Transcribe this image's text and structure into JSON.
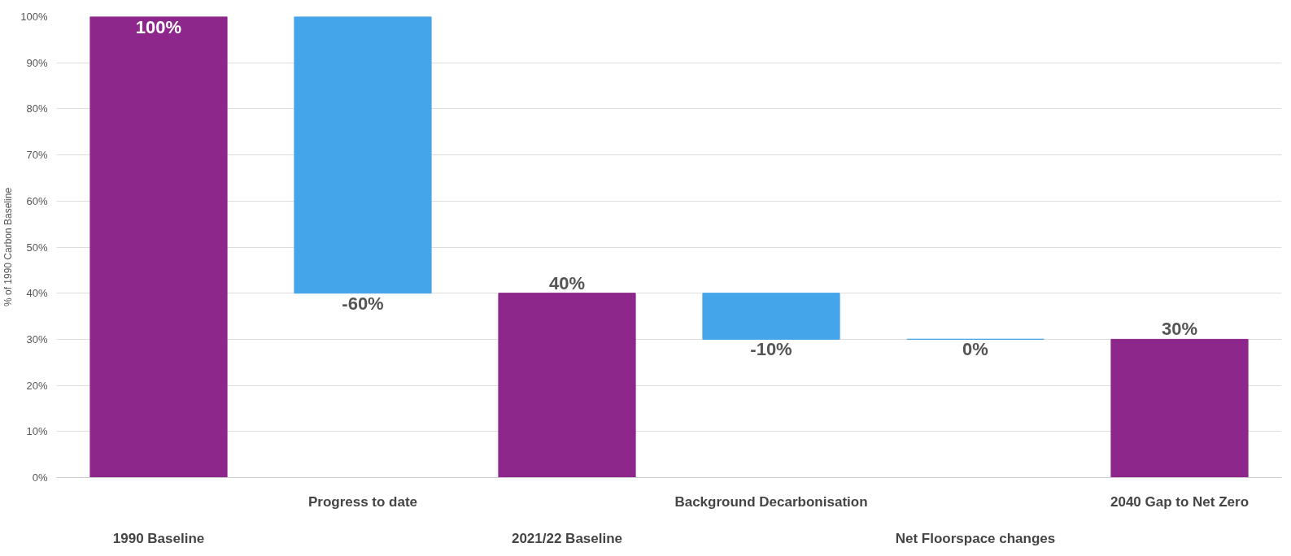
{
  "chart_data": {
    "type": "bar",
    "ylabel": "% of 1990 Carbon Baseline",
    "categories": [
      "1990 Baseline",
      "Progress to date",
      "2021/22 Baseline",
      "Background Decarbonisation",
      "Net Floorspace changes",
      "2040 Gap to Net Zero"
    ],
    "values": [
      100,
      -60,
      40,
      -10,
      0,
      30
    ],
    "base": [
      0,
      100,
      0,
      40,
      30,
      0
    ],
    "colors": [
      "#8e278b",
      "#45a5ea",
      "#8e278b",
      "#45a5ea",
      "#45a5ea",
      "#8e278b"
    ],
    "value_labels": [
      "100%",
      "-60%",
      "40%",
      "-10%",
      "0%",
      "30%"
    ],
    "ylim": [
      0,
      100
    ],
    "yticks": [
      {
        "value": 0,
        "label": "0%"
      },
      {
        "value": 10,
        "label": "10%"
      },
      {
        "value": 20,
        "label": "20%"
      },
      {
        "value": 30,
        "label": "30%"
      },
      {
        "value": 40,
        "label": "40%"
      },
      {
        "value": 50,
        "label": "50%"
      },
      {
        "value": 60,
        "label": "60%"
      },
      {
        "value": 70,
        "label": "70%"
      },
      {
        "value": 80,
        "label": "80%"
      },
      {
        "value": 90,
        "label": "90%"
      },
      {
        "value": 100,
        "label": "100%"
      }
    ],
    "grid": "y"
  }
}
